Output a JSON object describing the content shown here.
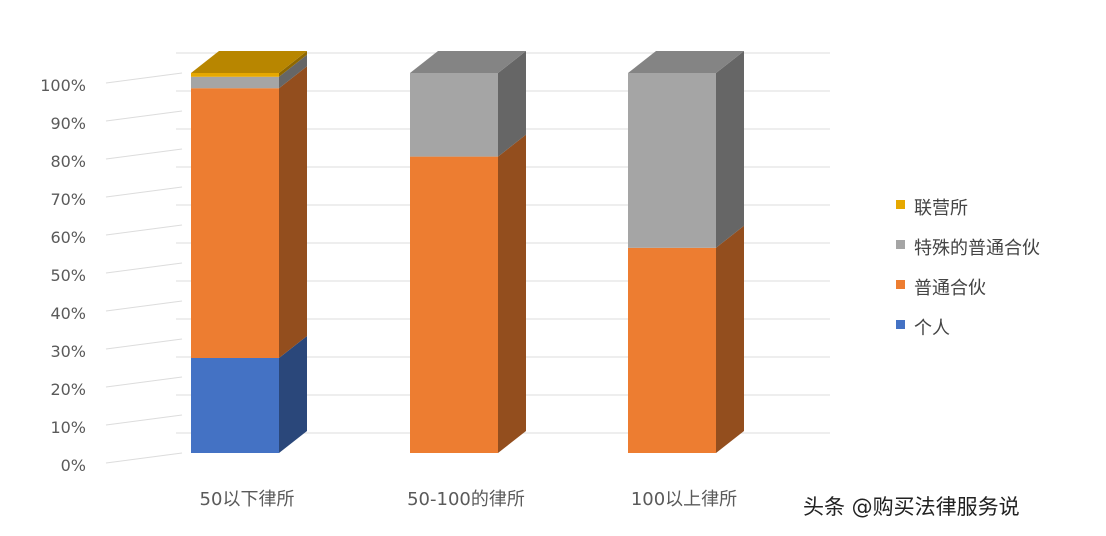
{
  "chart_data": {
    "type": "bar",
    "stacked": true,
    "three_d": true,
    "categories": [
      "50以下律所",
      "50-100的律所",
      "100以上律所"
    ],
    "series": [
      {
        "name": "个人",
        "color": "#4472c4",
        "values": [
          25,
          0,
          0
        ]
      },
      {
        "name": "普通合伙",
        "color": "#ed7d31",
        "values": [
          71,
          78,
          54
        ]
      },
      {
        "name": "特殊的普通合伙",
        "color": "#a5a5a5",
        "values": [
          3,
          22,
          46
        ]
      },
      {
        "name": "联营所",
        "color": "#e6a800",
        "values": [
          1,
          0,
          0
        ]
      }
    ],
    "y_ticks": [
      "0%",
      "10%",
      "20%",
      "30%",
      "40%",
      "50%",
      "60%",
      "70%",
      "80%",
      "90%",
      "100%"
    ],
    "ylim": [
      0,
      100
    ],
    "grid": true,
    "legend_position": "right"
  },
  "watermark": "头条 @购买法律服务说"
}
